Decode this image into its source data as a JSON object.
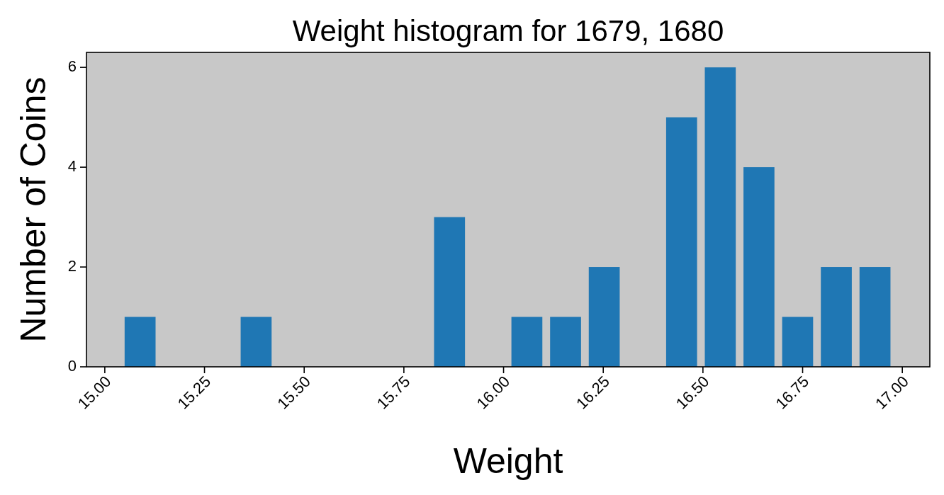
{
  "chart_data": {
    "type": "histogram",
    "title": "Weight histogram for 1679, 1680",
    "xlabel": "Weight",
    "ylabel": "Number of Coins",
    "bins": [
      15.04,
      15.137,
      15.234,
      15.331,
      15.428,
      15.525,
      15.622,
      15.719,
      15.816,
      15.913,
      16.01,
      16.107,
      16.204,
      16.301,
      16.398,
      16.495,
      16.592,
      16.689,
      16.786,
      16.883,
      16.98
    ],
    "values": [
      1,
      0,
      0,
      1,
      0,
      0,
      0,
      0,
      3,
      0,
      1,
      1,
      2,
      0,
      5,
      6,
      4,
      1,
      2,
      2
    ],
    "color": "#1f77b4",
    "xlim": [
      14.954,
      17.069
    ],
    "ylim": [
      0,
      6.3
    ],
    "xticks": [
      {
        "value": 15,
        "label": "15.00"
      },
      {
        "value": 15.25,
        "label": "15.25"
      },
      {
        "value": 15.5,
        "label": "15.50"
      },
      {
        "value": 15.75,
        "label": "15.75"
      },
      {
        "value": 16,
        "label": "16.00"
      },
      {
        "value": 16.25,
        "label": "16.25"
      },
      {
        "value": 16.5,
        "label": "16.50"
      },
      {
        "value": 16.75,
        "label": "16.75"
      },
      {
        "value": 17,
        "label": "17.00"
      }
    ],
    "yticks": [
      0,
      2,
      4,
      6
    ],
    "grid": false
  }
}
